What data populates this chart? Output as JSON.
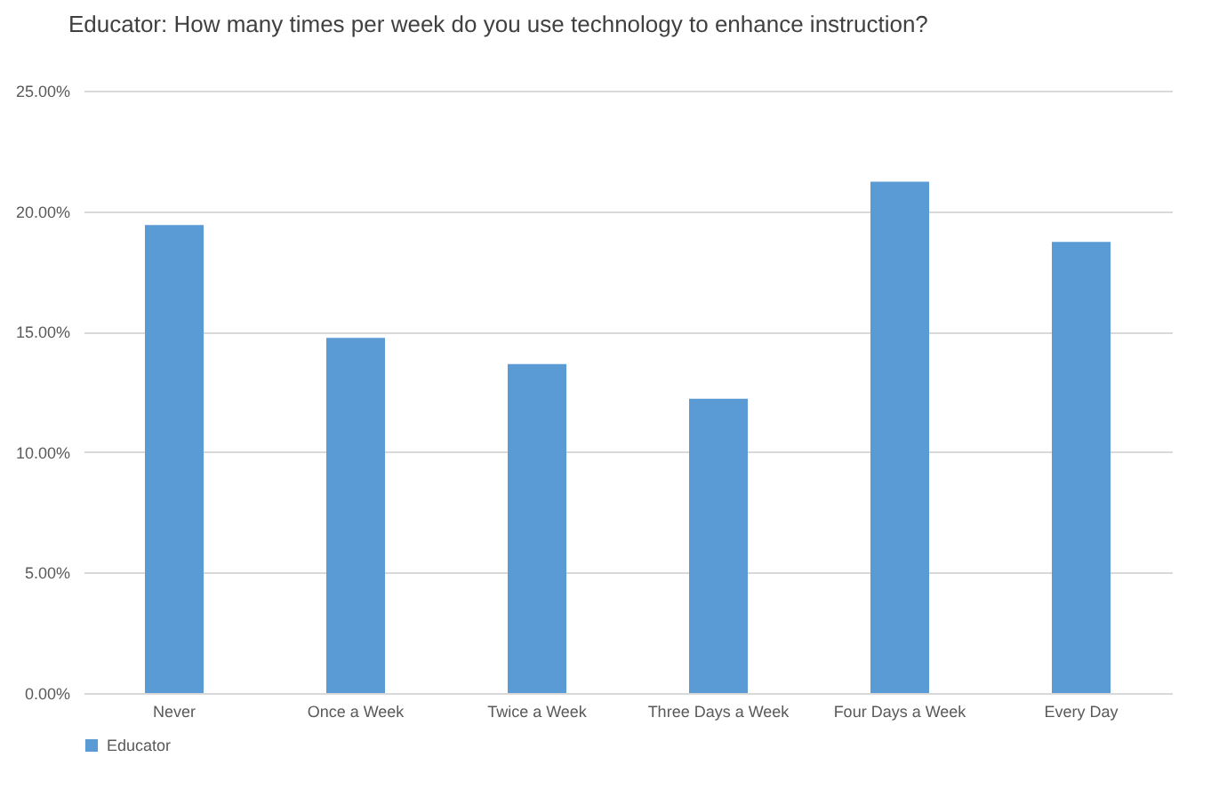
{
  "chart_data": {
    "type": "bar",
    "title": "Educator: How many times per week do you use technology to enhance instruction?",
    "categories": [
      "Never",
      "Once a Week",
      "Twice a Week",
      "Three Days a Week",
      "Four Days a Week",
      "Every Day"
    ],
    "series": [
      {
        "name": "Educator",
        "color": "#5b9bd5",
        "values": [
          19.42,
          14.74,
          13.65,
          12.21,
          21.22,
          18.72
        ]
      }
    ],
    "ylim": [
      0,
      25
    ],
    "yticks": [
      {
        "value": 0,
        "label": "0.00%"
      },
      {
        "value": 5,
        "label": "5.00%"
      },
      {
        "value": 10,
        "label": "10.00%"
      },
      {
        "value": 15,
        "label": "15.00%"
      },
      {
        "value": 20,
        "label": "20.00%"
      },
      {
        "value": 25,
        "label": "25.00%"
      }
    ],
    "grid": "y",
    "legend": "bottom"
  }
}
